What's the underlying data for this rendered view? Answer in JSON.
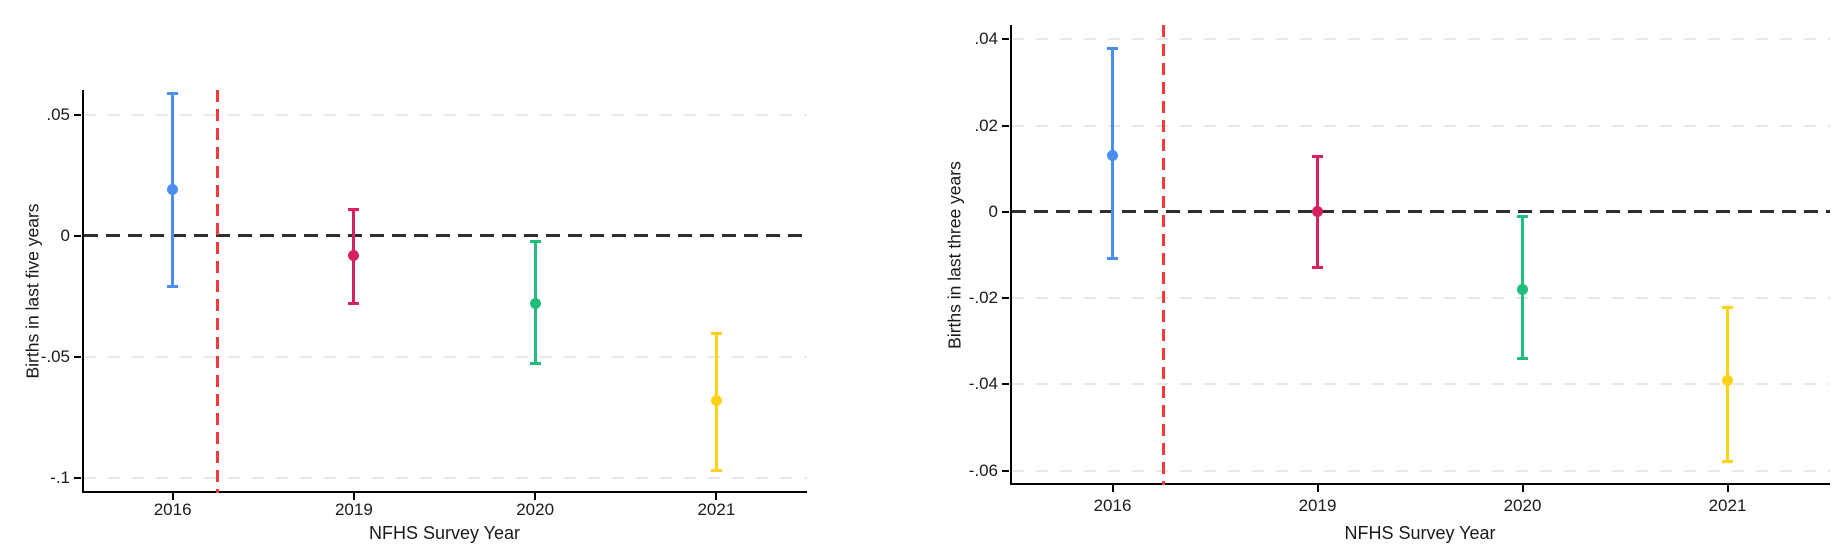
{
  "figure": {
    "background": "#ffffff",
    "description": "Two event-study style coefficient plots with 95% confidence intervals"
  },
  "colors": {
    "point_2016": "#4a8ff0",
    "point_2019": "#d6205f",
    "point_2020": "#1fbe7c",
    "point_2021": "#ffd117",
    "vline_red": "#f23a3a",
    "zero_line": "#2e2e2e",
    "gridline": "#e8e8e8",
    "axis": "#000000",
    "text": "#1a1a1a"
  },
  "chart_data": [
    {
      "type": "scatter",
      "subtype": "coefficient-errorbar",
      "title": "",
      "ylabel": "Births in last five years",
      "xlabel": "NFHS Survey Year",
      "categories": [
        "2016",
        "2019",
        "2020",
        "2021"
      ],
      "points": [
        {
          "category": "2016",
          "estimate": 0.019,
          "ci_low": -0.021,
          "ci_high": 0.059,
          "color": "#4a8ff0"
        },
        {
          "category": "2019",
          "estimate": -0.008,
          "ci_low": -0.028,
          "ci_high": 0.011,
          "color": "#d6205f"
        },
        {
          "category": "2020",
          "estimate": -0.028,
          "ci_low": -0.053,
          "ci_high": -0.002,
          "color": "#1fbe7c"
        },
        {
          "category": "2021",
          "estimate": -0.068,
          "ci_low": -0.097,
          "ci_high": -0.04,
          "color": "#ffd117"
        }
      ],
      "yticks": [
        {
          "value": 0.05,
          "label": ".05"
        },
        {
          "value": 0,
          "label": "0"
        },
        {
          "value": -0.05,
          "label": "-.05"
        },
        {
          "value": -0.1,
          "label": "-.1"
        }
      ],
      "ylim": [
        -0.1062,
        0.0603
      ],
      "zero_line": true,
      "grid": "horizontal-dashed",
      "legend": "none",
      "vline": {
        "style": "dashed",
        "color": "#f23a3a",
        "position_after_first_category_gaps": 0.25
      }
    },
    {
      "type": "scatter",
      "subtype": "coefficient-errorbar",
      "title": "",
      "ylabel": "Births in last three years",
      "xlabel": "NFHS Survey Year",
      "categories": [
        "2016",
        "2019",
        "2020",
        "2021"
      ],
      "points": [
        {
          "category": "2016",
          "estimate": 0.013,
          "ci_low": -0.011,
          "ci_high": 0.038,
          "color": "#4a8ff0"
        },
        {
          "category": "2019",
          "estimate": 0.0,
          "ci_low": -0.013,
          "ci_high": 0.013,
          "color": "#d6205f"
        },
        {
          "category": "2020",
          "estimate": -0.018,
          "ci_low": -0.034,
          "ci_high": -0.001,
          "color": "#1fbe7c"
        },
        {
          "category": "2021",
          "estimate": -0.039,
          "ci_low": -0.058,
          "ci_high": -0.022,
          "color": "#ffd117"
        }
      ],
      "yticks": [
        {
          "value": 0.04,
          "label": ".04"
        },
        {
          "value": 0.02,
          "label": ".02"
        },
        {
          "value": 0,
          "label": "0"
        },
        {
          "value": -0.02,
          "label": "-.02"
        },
        {
          "value": -0.04,
          "label": "-.04"
        },
        {
          "value": -0.06,
          "label": "-.06"
        }
      ],
      "ylim": [
        -0.0633,
        0.0433
      ],
      "zero_line": true,
      "grid": "horizontal-dashed",
      "legend": "none",
      "vline": {
        "style": "dashed",
        "color": "#f23a3a",
        "position_after_first_category_gaps": 0.25
      }
    }
  ]
}
